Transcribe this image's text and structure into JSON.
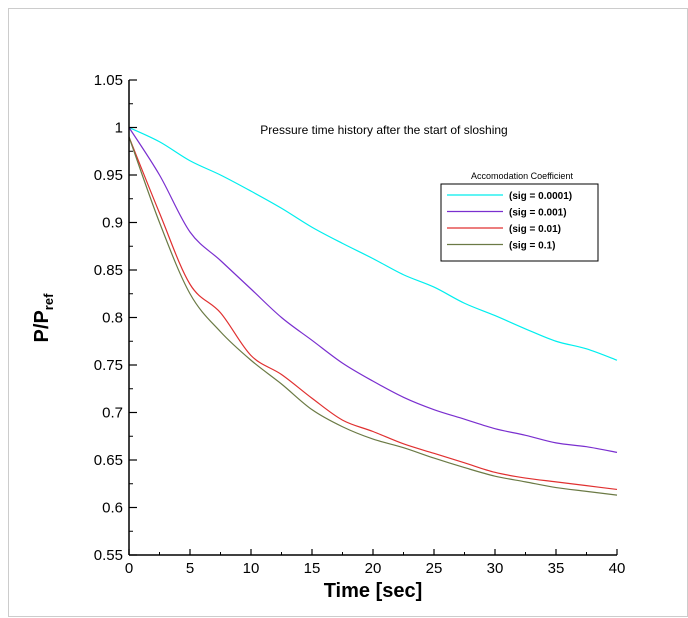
{
  "chart_data": {
    "type": "line",
    "title": "Pressure time history after the start of sloshing",
    "xlabel": "Time [sec]",
    "ylabel_main": "P/P",
    "ylabel_sub": "ref",
    "xlim": [
      0,
      40
    ],
    "ylim": [
      0.55,
      1.05
    ],
    "xticks": [
      0,
      5,
      10,
      15,
      20,
      25,
      30,
      35,
      40
    ],
    "xtick_labels": [
      "0",
      "5",
      "10",
      "15",
      "20",
      "25",
      "30",
      "35",
      "40"
    ],
    "yticks": [
      0.55,
      0.6,
      0.65,
      0.7,
      0.75,
      0.8,
      0.85,
      0.9,
      0.95,
      1.0,
      1.05
    ],
    "ytick_labels": [
      "0.55",
      "0.6",
      "0.65",
      "0.7",
      "0.75",
      "0.8",
      "0.85",
      "0.9",
      "0.95",
      "1",
      "1.05"
    ],
    "grid": false,
    "legend": {
      "title": "Accomodation Coefficient",
      "position": "upper-right"
    },
    "x": [
      0,
      2.5,
      5,
      7.5,
      10,
      12.5,
      15,
      17.5,
      20,
      22.5,
      25,
      27.5,
      30,
      32.5,
      35,
      37.5,
      40
    ],
    "series": [
      {
        "name": "(sig = 0.0001)",
        "color": "#00eeee",
        "values": [
          1.0,
          0.985,
          0.965,
          0.95,
          0.933,
          0.915,
          0.895,
          0.878,
          0.862,
          0.845,
          0.832,
          0.815,
          0.802,
          0.788,
          0.775,
          0.767,
          0.755
        ]
      },
      {
        "name": "(sig = 0.001)",
        "color": "#7a2fcf",
        "values": [
          1.0,
          0.95,
          0.89,
          0.86,
          0.83,
          0.8,
          0.776,
          0.752,
          0.733,
          0.716,
          0.703,
          0.693,
          0.683,
          0.676,
          0.668,
          0.664,
          0.658
        ]
      },
      {
        "name": "(sig = 0.01)",
        "color": "#e03030",
        "values": [
          0.99,
          0.91,
          0.835,
          0.805,
          0.76,
          0.74,
          0.715,
          0.692,
          0.68,
          0.667,
          0.657,
          0.647,
          0.637,
          0.631,
          0.627,
          0.623,
          0.619
        ]
      },
      {
        "name": "(sig = 0.1)",
        "color": "#6b7a45",
        "values": [
          0.99,
          0.9,
          0.825,
          0.785,
          0.755,
          0.73,
          0.703,
          0.685,
          0.672,
          0.663,
          0.652,
          0.642,
          0.633,
          0.627,
          0.621,
          0.617,
          0.613
        ]
      }
    ]
  }
}
